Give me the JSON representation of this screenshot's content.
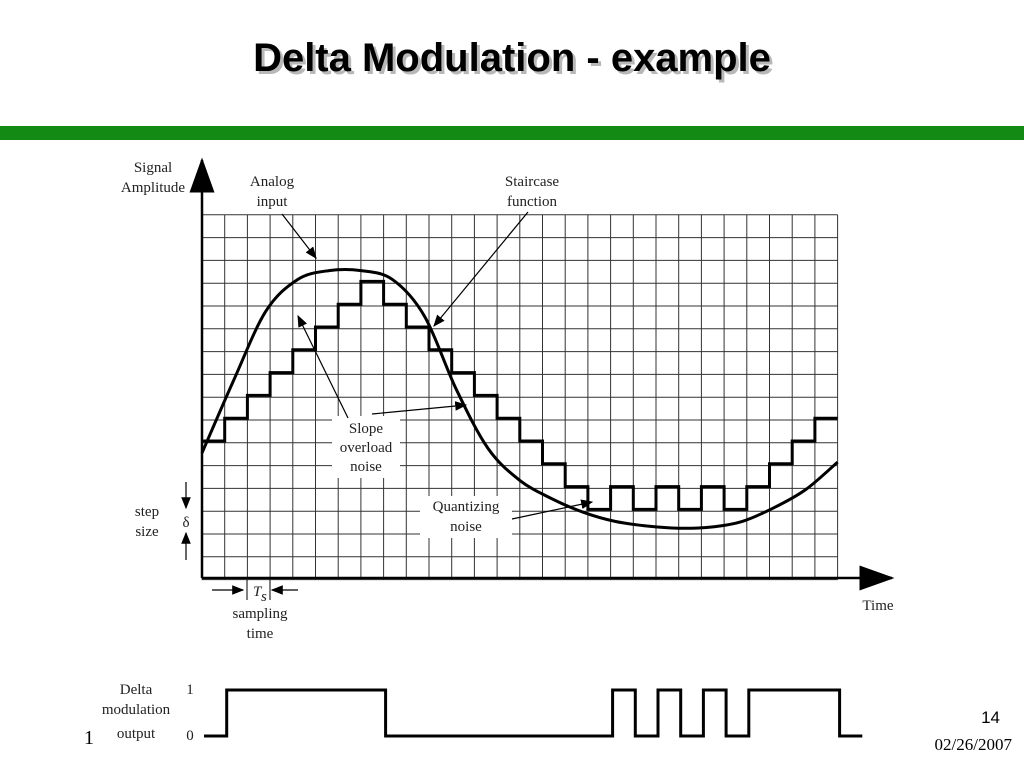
{
  "title": "Delta Modulation - example",
  "page_number": "14",
  "date": "02/26/2007",
  "footer_fragment": "1",
  "accent_color": "#138a13",
  "labels": {
    "signal_amplitude": [
      "Signal",
      "Amplitude"
    ],
    "analog_input": [
      "Analog",
      "input"
    ],
    "staircase_function": [
      "Staircase",
      "function"
    ],
    "slope_overload_noise": [
      "Slope",
      "overload",
      "noise"
    ],
    "quantizing_noise": [
      "Quantizing",
      "noise"
    ],
    "step_size": [
      "step",
      "size"
    ],
    "delta_symbol": "δ",
    "ts_T": "T",
    "ts_s": "s",
    "sampling_time": [
      "sampling",
      "time"
    ],
    "time": "Time",
    "delta_modulation_output": [
      "Delta",
      "modulation",
      "output"
    ],
    "level_one": "1",
    "level_zero": "0"
  },
  "chart_data": {
    "type": "line",
    "grid": true,
    "staircase_levels": [
      0,
      1,
      2,
      3,
      4,
      5,
      6,
      7,
      6,
      5,
      4,
      3,
      2,
      1,
      0,
      -1,
      -2,
      -3,
      -2,
      -3,
      -2,
      -3,
      -2,
      -3,
      -2,
      -1,
      0,
      1
    ],
    "output_bits": [
      0,
      1,
      1,
      1,
      1,
      1,
      1,
      1,
      0,
      0,
      0,
      0,
      0,
      0,
      0,
      0,
      0,
      0,
      1,
      0,
      1,
      0,
      1,
      0,
      1,
      1,
      1,
      1,
      0
    ],
    "analog_input": [
      [
        0,
        0
      ],
      [
        1,
        3.2
      ],
      [
        2,
        6.2
      ],
      [
        3,
        7.6
      ],
      [
        4,
        8
      ],
      [
        5,
        8
      ],
      [
        6,
        7.6
      ],
      [
        7,
        6
      ],
      [
        8,
        2.8
      ],
      [
        9,
        0.2
      ],
      [
        10,
        -1.2
      ],
      [
        11,
        -2
      ],
      [
        12,
        -2.6
      ],
      [
        13,
        -3
      ],
      [
        14,
        -3.2
      ],
      [
        15,
        -3.3
      ],
      [
        16,
        -3.25
      ],
      [
        17,
        -3
      ],
      [
        18,
        -2.4
      ],
      [
        19,
        -1.6
      ],
      [
        20,
        -0.4
      ]
    ]
  }
}
